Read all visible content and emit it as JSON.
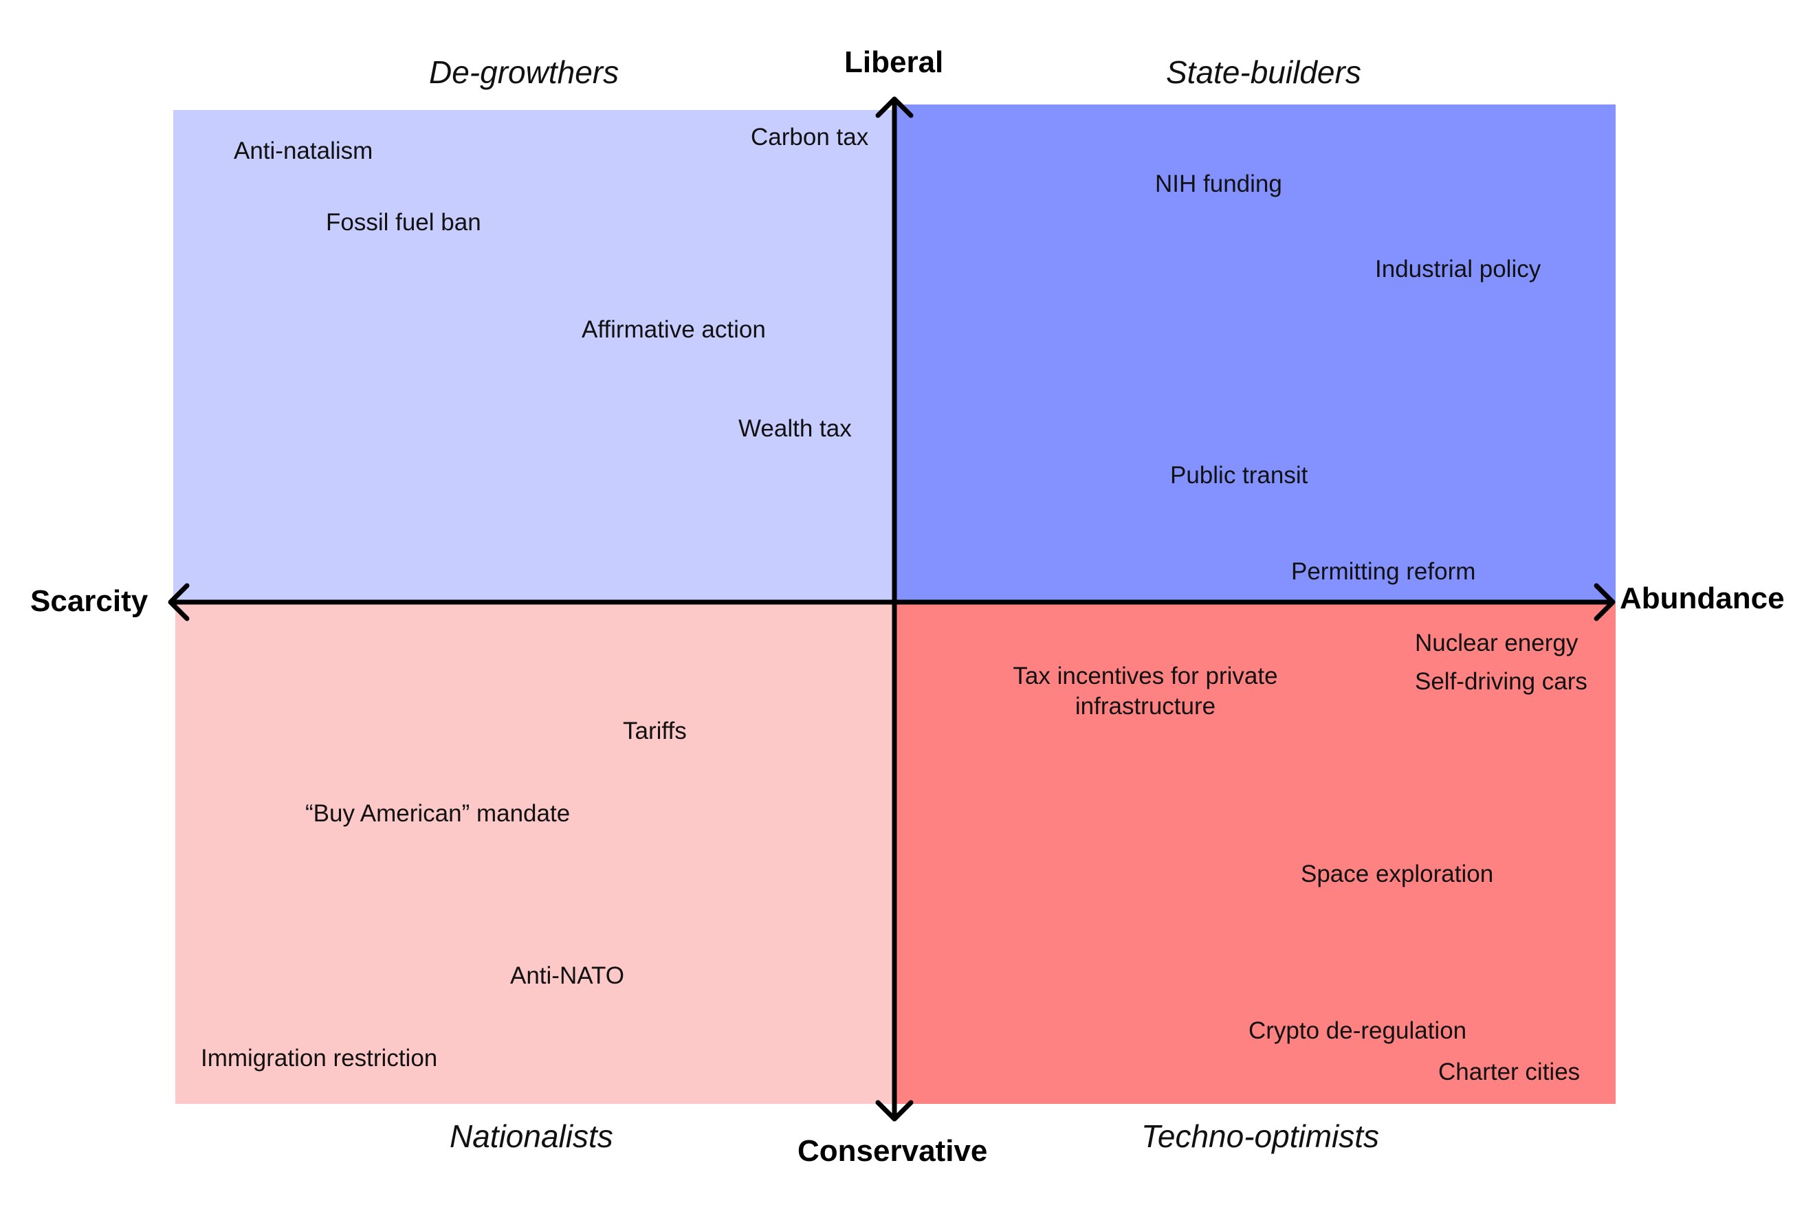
{
  "colors": {
    "liberal_scarcity": "#c8cdff",
    "liberal_abundance": "#8392ff",
    "conservative_scarcity": "#fdc8c8",
    "conservative_abundance": "#ff8282",
    "axis": "#000000"
  },
  "axes": {
    "top": "Liberal",
    "bottom": "Conservative",
    "left": "Scarcity",
    "right": "Abundance"
  },
  "quadrant_labels": {
    "top_left": "De-growthers",
    "top_right": "State-builders",
    "bottom_left": "Nationalists",
    "bottom_right": "Techno-optimists"
  },
  "items": {
    "anti_natalism": "Anti-natalism",
    "fossil_fuel_ban": "Fossil fuel ban",
    "carbon_tax": "Carbon tax",
    "affirmative_action": "Affirmative action",
    "wealth_tax": "Wealth tax",
    "nih_funding": "NIH funding",
    "industrial_policy": "Industrial policy",
    "public_transit": "Public transit",
    "permitting_reform": "Permitting reform",
    "nuclear_energy": "Nuclear energy",
    "self_driving_cars": "Self-driving cars",
    "tax_incentives_line1": "Tax incentives for private",
    "tax_incentives_line2": "infrastructure",
    "space_exploration": "Space exploration",
    "crypto_deregulation": "Crypto de-regulation",
    "charter_cities": "Charter cities",
    "tariffs": "Tariffs",
    "buy_american": "“Buy American” mandate",
    "anti_nato": "Anti-NATO",
    "immigration_restriction": "Immigration restriction"
  }
}
